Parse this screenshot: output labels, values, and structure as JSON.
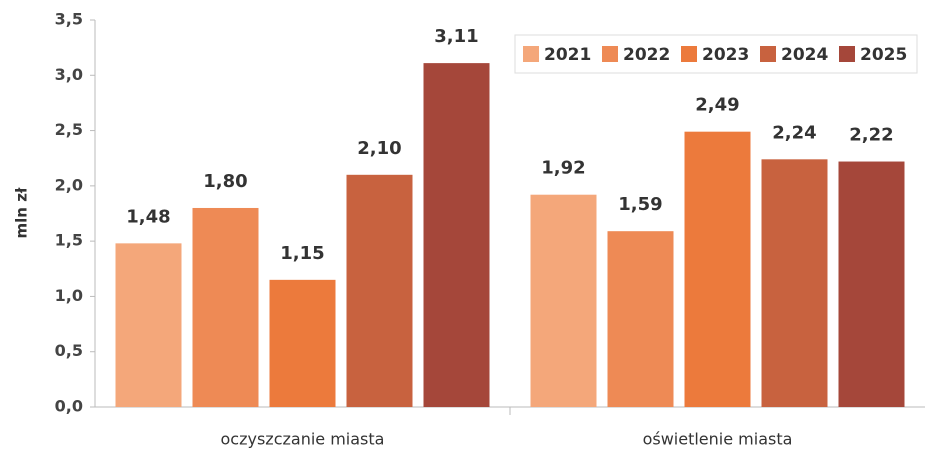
{
  "chart_data": {
    "type": "bar",
    "y_label": "mln zł",
    "categories": [
      "oczyszczanie miasta",
      "oświetlenie miasta"
    ],
    "series": [
      {
        "name": "2021",
        "color": "#f4a77a",
        "values": [
          1.48,
          1.92
        ],
        "value_labels": [
          "1,48",
          "1,92"
        ]
      },
      {
        "name": "2022",
        "color": "#ee8a55",
        "values": [
          1.8,
          1.59
        ],
        "value_labels": [
          "1,80",
          "1,59"
        ]
      },
      {
        "name": "2023",
        "color": "#ec7a3c",
        "values": [
          1.15,
          2.49
        ],
        "value_labels": [
          "1,15",
          "2,49"
        ]
      },
      {
        "name": "2024",
        "color": "#c8623f",
        "values": [
          2.1,
          2.24
        ],
        "value_labels": [
          "2,10",
          "2,24"
        ]
      },
      {
        "name": "2025",
        "color": "#a5473a",
        "values": [
          3.11,
          2.22
        ],
        "value_labels": [
          "3,11",
          "2,22"
        ]
      }
    ],
    "ylim": [
      0,
      3.5
    ],
    "yticks": [
      {
        "value": 0,
        "label": "0,0"
      },
      {
        "value": 0.5,
        "label": "0,5"
      },
      {
        "value": 1,
        "label": "1,0"
      },
      {
        "value": 1.5,
        "label": "1,5"
      },
      {
        "value": 2,
        "label": "2,0"
      },
      {
        "value": 2.5,
        "label": "2,5"
      },
      {
        "value": 3,
        "label": "3,0"
      },
      {
        "value": 3.5,
        "label": "3,5"
      }
    ],
    "legend": "top-right"
  }
}
